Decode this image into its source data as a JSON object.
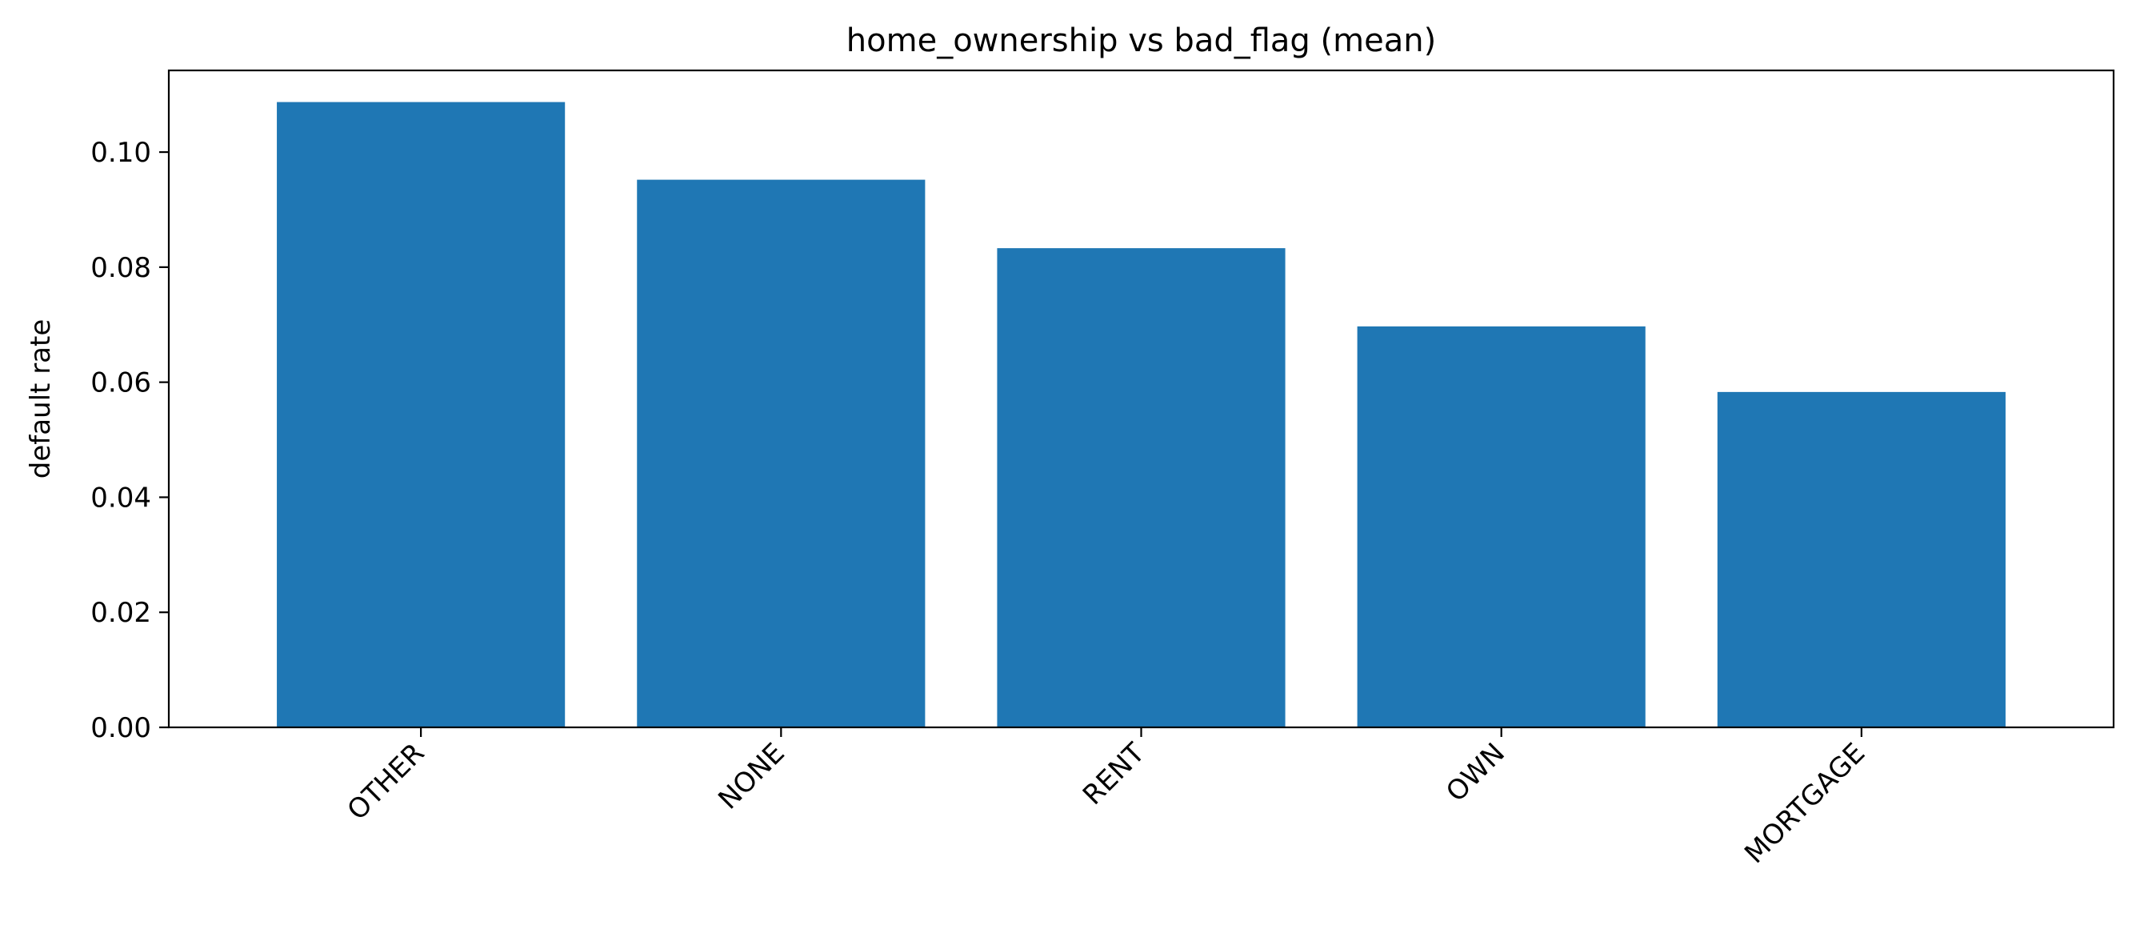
{
  "chart_data": {
    "type": "bar",
    "title": "home_ownership vs bad_flag (mean)",
    "xlabel": "",
    "ylabel": "default rate",
    "categories": [
      "OTHER",
      "NONE",
      "RENT",
      "OWN",
      "MORTGAGE"
    ],
    "values": [
      0.1087,
      0.0952,
      0.0833,
      0.0697,
      0.0583
    ],
    "ylim": [
      0,
      0.1142
    ],
    "yticks": [
      0.0,
      0.02,
      0.04,
      0.06,
      0.08,
      0.1
    ],
    "ytick_labels": [
      "0.00",
      "0.02",
      "0.04",
      "0.06",
      "0.08",
      "0.10"
    ],
    "bar_color": "#1f77b4",
    "grid": false,
    "legend": "none",
    "xtick_rotation_deg": 45
  }
}
